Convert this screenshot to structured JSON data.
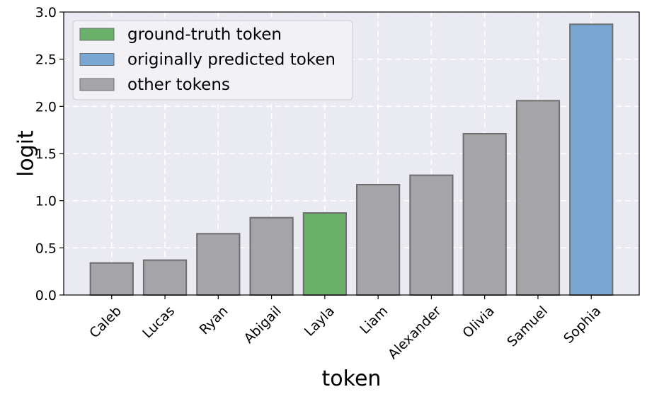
{
  "chart_data": {
    "type": "bar",
    "title": "",
    "xlabel": "token",
    "ylabel": "logit",
    "categories": [
      "Caleb",
      "Lucas",
      "Ryan",
      "Abigail",
      "Layla",
      "Liam",
      "Alexander",
      "Olivia",
      "Samuel",
      "Sophia"
    ],
    "values": [
      0.34,
      0.37,
      0.65,
      0.82,
      0.87,
      1.17,
      1.27,
      1.71,
      2.06,
      2.87
    ],
    "bar_roles": [
      "other",
      "other",
      "other",
      "other",
      "ground_truth",
      "other",
      "other",
      "other",
      "other",
      "predicted"
    ],
    "ylim": [
      0.0,
      3.0
    ],
    "yticks": [
      "0.0",
      "0.5",
      "1.0",
      "1.5",
      "2.0",
      "2.5",
      "3.0"
    ],
    "grid": true,
    "legend_position": "top-left",
    "legend": [
      {
        "role": "ground_truth",
        "label": "ground-truth token",
        "color": "#6aaf6a"
      },
      {
        "role": "predicted",
        "label": "originally predicted token",
        "color": "#7aa6d2"
      },
      {
        "role": "other",
        "label": "other tokens",
        "color": "#a5a4a9"
      }
    ],
    "colors": {
      "ground_truth": "#6aaf6a",
      "predicted": "#7aa6d2",
      "other": "#a5a4a9",
      "plot_background": "#eaeaf2",
      "bar_edge": "#6e6e6e"
    }
  }
}
